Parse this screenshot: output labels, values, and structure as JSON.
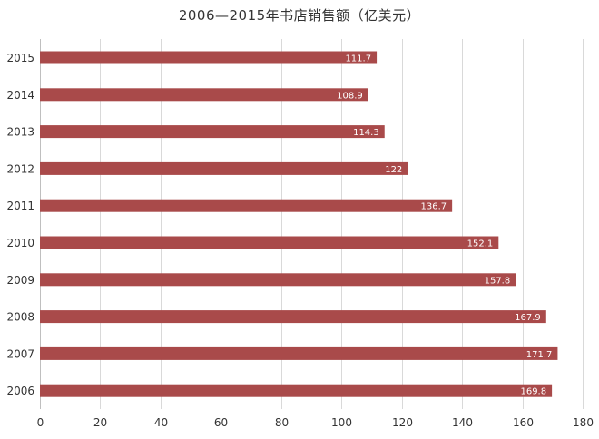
{
  "chart_data": {
    "type": "bar",
    "orientation": "horizontal",
    "title": "2006—2015年书店销售额（亿美元）",
    "xlabel": "",
    "ylabel": "",
    "categories": [
      "2015",
      "2014",
      "2013",
      "2012",
      "2011",
      "2010",
      "2009",
      "2008",
      "2007",
      "2006"
    ],
    "values": [
      111.7,
      108.9,
      114.3,
      122,
      136.7,
      152.1,
      157.8,
      167.9,
      171.7,
      169.8
    ],
    "value_labels": [
      "111.7",
      "108.9",
      "114.3",
      "122",
      "136.7",
      "152.1",
      "157.8",
      "167.9",
      "171.7",
      "169.8"
    ],
    "xlim": [
      0,
      180
    ],
    "xticks": [
      0,
      20,
      40,
      60,
      80,
      100,
      120,
      140,
      160,
      180
    ],
    "grid": "vertical",
    "bar_color": "#a94a4a",
    "grid_color": "#d9d9d9"
  }
}
